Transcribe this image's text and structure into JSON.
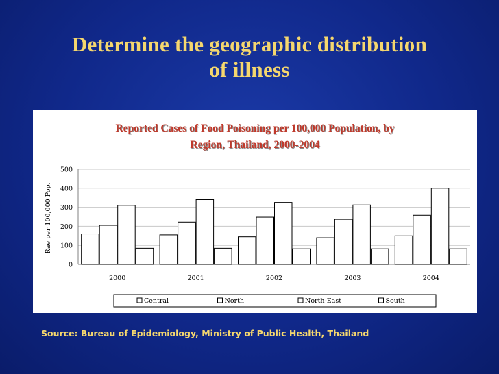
{
  "slide": {
    "title_line1": "Determine the geographic distribution",
    "title_line2": "of illness",
    "source": "Source:  Bureau of Epidemiology, Ministry of Public Health, Thailand"
  },
  "colors": {
    "background": "#10288a",
    "title": "#f5d76e",
    "chart_title": "#c0392b",
    "bar_fill": "#ffffff",
    "bar_stroke": "#000000"
  },
  "chart_data": {
    "type": "bar",
    "title_line1": "Reported Cases of Food Poisoning per 100,000 Population, by",
    "title_line2": "Region, Thailand, 2000-2004",
    "ylabel": "Rae per 100,000 Pop.",
    "xlabel": "",
    "categories": [
      "2000",
      "2001",
      "2002",
      "2003",
      "2004"
    ],
    "ylim": [
      0,
      500
    ],
    "yticks": [
      0,
      100,
      200,
      300,
      400,
      500
    ],
    "grid": true,
    "legend_position": "bottom",
    "series": [
      {
        "name": "Central",
        "values": [
          160,
          155,
          145,
          140,
          150
        ]
      },
      {
        "name": "North",
        "values": [
          205,
          222,
          248,
          237,
          258
        ]
      },
      {
        "name": "North-East",
        "values": [
          310,
          340,
          325,
          312,
          400
        ]
      },
      {
        "name": "South",
        "values": [
          85,
          85,
          82,
          82,
          82
        ]
      }
    ]
  }
}
